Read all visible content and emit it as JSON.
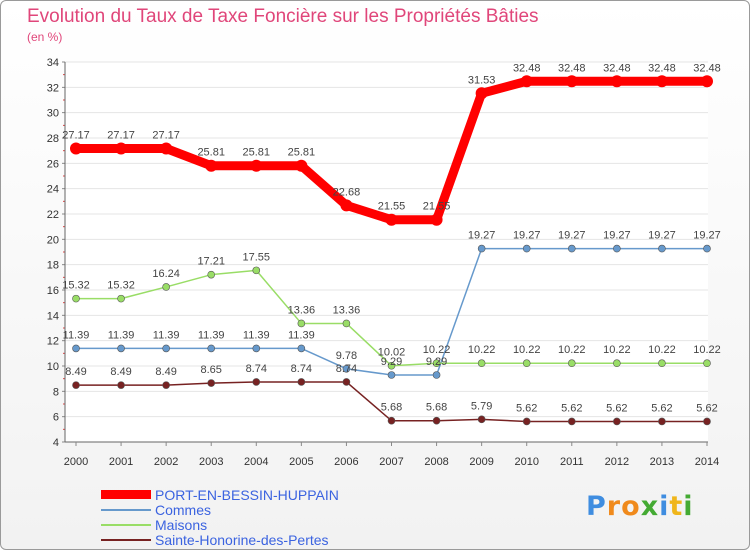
{
  "chart_data": {
    "type": "line",
    "title": "Evolution du Taux de Taxe Foncière sur les Propriétés Bâties",
    "ylabel": "(en %)",
    "xlabel": "",
    "ylim": [
      4,
      34
    ],
    "yticks": [
      4,
      6,
      8,
      10,
      12,
      14,
      16,
      18,
      20,
      22,
      24,
      26,
      28,
      30,
      32,
      34
    ],
    "categories": [
      "2000",
      "2001",
      "2002",
      "2003",
      "2004",
      "2005",
      "2006",
      "2007",
      "2008",
      "2009",
      "2010",
      "2011",
      "2012",
      "2013",
      "2014"
    ],
    "series": [
      {
        "name": "PORT-EN-BESSIN-HUPPAIN",
        "color": "#ff0000",
        "values": [
          27.17,
          27.17,
          27.17,
          25.81,
          25.81,
          25.81,
          22.68,
          21.55,
          21.55,
          31.53,
          32.48,
          32.48,
          32.48,
          32.48,
          32.48
        ],
        "labels": [
          "27.17",
          "27.17",
          "27.17",
          "25.81",
          "25.81",
          "25.81",
          "22.68",
          "21.55",
          "21.55",
          "31.53",
          "32.48",
          "32.48",
          "32.48",
          "32.48",
          "32.48"
        ]
      },
      {
        "name": "Commes",
        "color": "#6699cc",
        "values": [
          11.39,
          11.39,
          11.39,
          11.39,
          11.39,
          11.39,
          9.78,
          9.29,
          9.29,
          19.27,
          19.27,
          19.27,
          19.27,
          19.27,
          19.27
        ],
        "labels": [
          "11.39",
          "11.39",
          "11.39",
          "11.39",
          "11.39",
          "11.39",
          "9.78",
          "9.29",
          "9.29",
          "19.27",
          "19.27",
          "19.27",
          "19.27",
          "19.27",
          "19.27"
        ]
      },
      {
        "name": "Maisons",
        "color": "#99dd66",
        "values": [
          15.32,
          15.32,
          16.24,
          17.21,
          17.55,
          13.36,
          13.36,
          10.02,
          10.22,
          10.22,
          10.22,
          10.22,
          10.22,
          10.22,
          10.22
        ],
        "labels": [
          "15.32",
          "15.32",
          "16.24",
          "17.21",
          "17.55",
          "13.36",
          "13.36",
          "10.02",
          "10.22",
          "10.22",
          "10.22",
          "10.22",
          "10.22",
          "10.22",
          "10.22"
        ]
      },
      {
        "name": "Sainte-Honorine-des-Pertes",
        "color": "#772222",
        "values": [
          8.49,
          8.49,
          8.49,
          8.65,
          8.74,
          8.74,
          8.74,
          5.68,
          5.68,
          5.79,
          5.62,
          5.62,
          5.62,
          5.62,
          5.62
        ],
        "labels": [
          "8.49",
          "8.49",
          "8.49",
          "8.65",
          "8.74",
          "8.74",
          "8.74",
          "5.68",
          "5.68",
          "5.79",
          "5.62",
          "5.62",
          "5.62",
          "5.62",
          "5.62"
        ]
      }
    ],
    "legend_position": "bottom-left"
  },
  "logo": {
    "text": "Proxiti"
  }
}
